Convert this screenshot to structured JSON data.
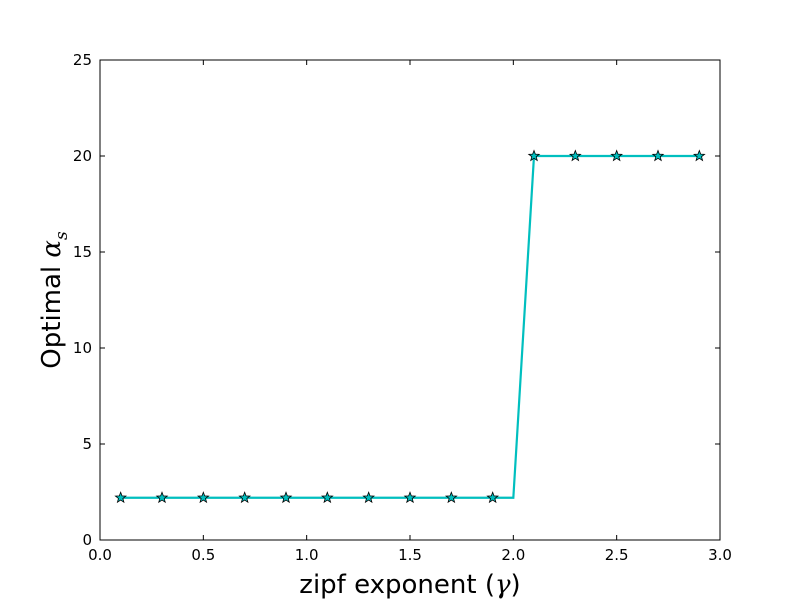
{
  "chart_data": {
    "type": "line",
    "title": "",
    "xlabel_text": "zipf exponent (",
    "xlabel_symbol": "γ",
    "xlabel_close": ")",
    "ylabel_text": "Optimal ",
    "ylabel_symbol": "α",
    "ylabel_subscript": "s",
    "xlim": [
      0.0,
      3.0
    ],
    "ylim": [
      0,
      25
    ],
    "xticks": [
      "0.0",
      "0.5",
      "1.0",
      "1.5",
      "2.0",
      "2.5",
      "3.0"
    ],
    "yticks": [
      "0",
      "5",
      "10",
      "15",
      "20",
      "25"
    ],
    "grid": false,
    "line_x": [
      0.1,
      0.3,
      0.5,
      0.7,
      0.9,
      1.1,
      1.3,
      1.5,
      1.7,
      1.9,
      2.0,
      2.1,
      2.3,
      2.5,
      2.7,
      2.9
    ],
    "line_y": [
      2.2,
      2.2,
      2.2,
      2.2,
      2.2,
      2.2,
      2.2,
      2.2,
      2.2,
      2.2,
      2.2,
      20,
      20,
      20,
      20,
      20
    ],
    "marker_x": [
      0.1,
      0.3,
      0.5,
      0.7,
      0.9,
      1.1,
      1.3,
      1.5,
      1.7,
      1.9,
      2.1,
      2.3,
      2.5,
      2.7,
      2.9
    ],
    "marker_y": [
      2.2,
      2.2,
      2.2,
      2.2,
      2.2,
      2.2,
      2.2,
      2.2,
      2.2,
      2.2,
      20,
      20,
      20,
      20,
      20
    ],
    "marker": "star",
    "line_color": "#00BFBF",
    "marker_color": "#00BFBF"
  }
}
